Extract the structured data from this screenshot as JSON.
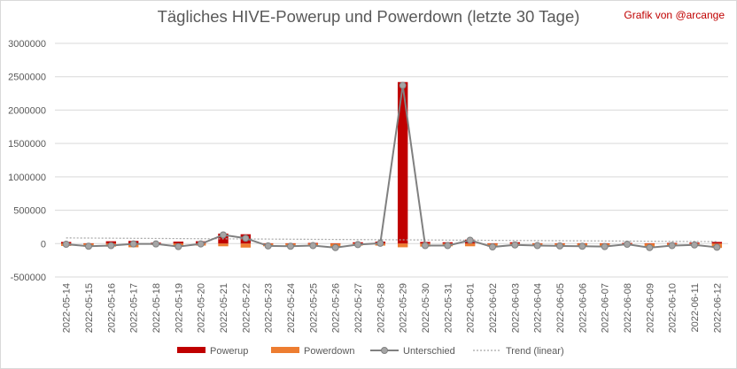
{
  "chart_data": {
    "type": "bar",
    "title": "Tägliches HIVE-Powerup und Powerdown (letzte 30 Tage)",
    "credit": "Grafik von @arcange",
    "ylim": [
      -500000,
      3000000
    ],
    "yticks": [
      -500000,
      0,
      500000,
      1000000,
      1500000,
      2000000,
      2500000,
      3000000
    ],
    "ytick_labels": [
      "-500000",
      "0",
      "500000",
      "1000000",
      "1500000",
      "2000000",
      "2500000",
      "3000000"
    ],
    "grid": true,
    "legend_position": "bottom",
    "categories": [
      "2022-05-14",
      "2022-05-15",
      "2022-05-16",
      "2022-05-17",
      "2022-05-18",
      "2022-05-19",
      "2022-05-20",
      "2022-05-21",
      "2022-05-22",
      "2022-05-23",
      "2022-05-24",
      "2022-05-25",
      "2022-05-26",
      "2022-05-27",
      "2022-05-28",
      "2022-05-29",
      "2022-05-30",
      "2022-05-31",
      "2022-06-01",
      "2022-06-02",
      "2022-06-03",
      "2022-06-04",
      "2022-06-05",
      "2022-06-06",
      "2022-06-07",
      "2022-06-08",
      "2022-06-09",
      "2022-06-10",
      "2022-06-11",
      "2022-06-12"
    ],
    "series": [
      {
        "name": "Powerup",
        "kind": "bar",
        "color": "#c00000",
        "values": [
          25000,
          5000,
          35000,
          40000,
          15000,
          30000,
          35000,
          150000,
          140000,
          5000,
          5000,
          10000,
          5000,
          20000,
          30000,
          2420000,
          25000,
          20000,
          60000,
          5000,
          20000,
          5000,
          5000,
          5000,
          5000,
          10000,
          5000,
          10000,
          15000,
          25000
        ]
      },
      {
        "name": "Powerdown",
        "kind": "bar",
        "color": "#ed7d31",
        "values": [
          -35000,
          -45000,
          -45000,
          -55000,
          -20000,
          -45000,
          -30000,
          -40000,
          -60000,
          -40000,
          -45000,
          -40000,
          -55000,
          -30000,
          -30000,
          -55000,
          -45000,
          -40000,
          -40000,
          -45000,
          -35000,
          -30000,
          -35000,
          -35000,
          -45000,
          -15000,
          -50000,
          -35000,
          -30000,
          -65000
        ]
      },
      {
        "name": "Unterschied",
        "kind": "line",
        "color": "#808080",
        "values": [
          -10000,
          -40000,
          -30000,
          -5000,
          -5000,
          -45000,
          -5000,
          130000,
          80000,
          -35000,
          -40000,
          -30000,
          -60000,
          -15000,
          5000,
          2370000,
          -30000,
          -30000,
          50000,
          -50000,
          -20000,
          -30000,
          -35000,
          -40000,
          -45000,
          -10000,
          -60000,
          -30000,
          -20000,
          -55000
        ]
      }
    ],
    "trend": {
      "name": "Trend (linear)",
      "color": "#a6a6a6",
      "values": [
        85000,
        30000
      ]
    }
  }
}
